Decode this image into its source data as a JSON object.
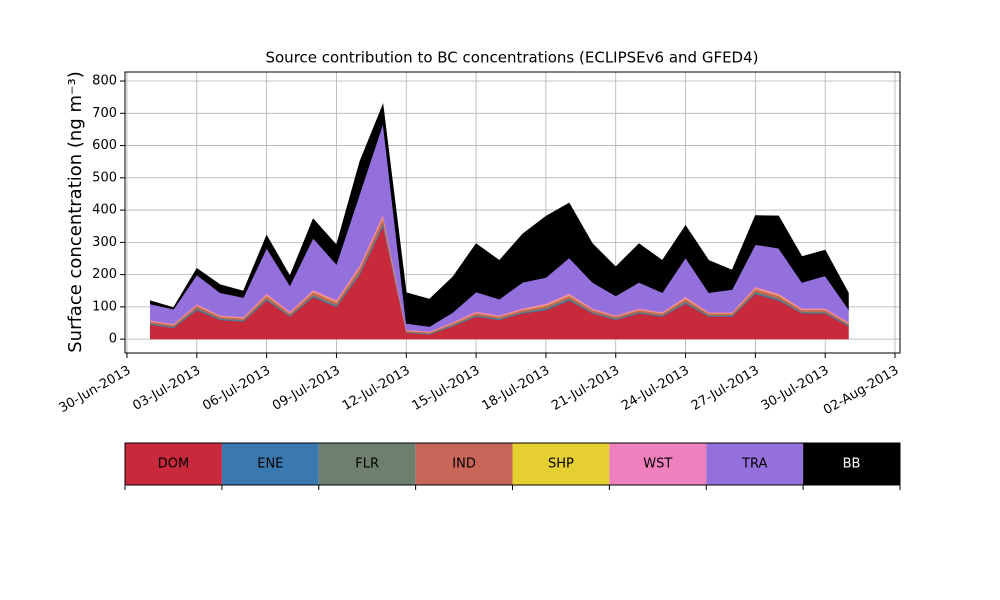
{
  "chart_data": {
    "type": "stacked_area",
    "title": "Source contribution to BC concentrations (ECLIPSEv6 and GFED4)",
    "y_label": "Surface concentration (ng m⁻³)",
    "x": [
      "2013-07-01",
      "2013-07-02",
      "2013-07-03",
      "2013-07-04",
      "2013-07-05",
      "2013-07-06",
      "2013-07-07",
      "2013-07-08",
      "2013-07-09",
      "2013-07-10",
      "2013-07-11",
      "2013-07-12",
      "2013-07-13",
      "2013-07-14",
      "2013-07-15",
      "2013-07-16",
      "2013-07-17",
      "2013-07-18",
      "2013-07-19",
      "2013-07-20",
      "2013-07-21",
      "2013-07-22",
      "2013-07-23",
      "2013-07-24",
      "2013-07-25",
      "2013-07-26",
      "2013-07-27",
      "2013-07-28",
      "2013-07-29",
      "2013-07-30",
      "2013-07-31"
    ],
    "series": [
      {
        "name": "DOM",
        "color": "#c8293b",
        "values": [
          45,
          35,
          90,
          60,
          55,
          120,
          70,
          130,
          100,
          200,
          350,
          20,
          15,
          40,
          70,
          60,
          80,
          90,
          120,
          80,
          60,
          80,
          70,
          110,
          70,
          70,
          140,
          120,
          80,
          80,
          40
        ]
      },
      {
        "name": "ENE",
        "color": "#3a78b0",
        "values": [
          2,
          2,
          3,
          2,
          2,
          3,
          2,
          3,
          3,
          4,
          5,
          1,
          1,
          2,
          2,
          2,
          2,
          3,
          3,
          2,
          2,
          2,
          2,
          3,
          2,
          2,
          3,
          3,
          2,
          2,
          2
        ]
      },
      {
        "name": "FLR",
        "color": "#6e7f6e",
        "values": [
          3,
          3,
          4,
          3,
          3,
          4,
          3,
          4,
          4,
          5,
          6,
          2,
          2,
          3,
          3,
          3,
          3,
          4,
          4,
          3,
          3,
          3,
          3,
          4,
          3,
          3,
          4,
          4,
          3,
          3,
          3
        ]
      },
      {
        "name": "IND",
        "color": "#c8665a",
        "values": [
          5,
          4,
          7,
          5,
          5,
          8,
          6,
          9,
          8,
          12,
          15,
          3,
          3,
          4,
          6,
          5,
          6,
          7,
          8,
          6,
          5,
          6,
          5,
          8,
          5,
          5,
          9,
          8,
          6,
          6,
          4
        ]
      },
      {
        "name": "SHP",
        "color": "#e6cf30",
        "values": [
          1,
          1,
          1,
          1,
          1,
          2,
          1,
          2,
          2,
          2,
          3,
          1,
          1,
          1,
          1,
          1,
          1,
          2,
          2,
          1,
          1,
          1,
          1,
          2,
          1,
          1,
          2,
          2,
          1,
          1,
          1
        ]
      },
      {
        "name": "WST",
        "color": "#f07fbe",
        "values": [
          3,
          3,
          4,
          3,
          3,
          5,
          4,
          5,
          5,
          7,
          9,
          2,
          2,
          3,
          4,
          3,
          4,
          5,
          5,
          4,
          3,
          4,
          3,
          5,
          3,
          3,
          5,
          5,
          4,
          4,
          3
        ]
      },
      {
        "name": "TRA",
        "color": "#9370db",
        "values": [
          50,
          45,
          90,
          70,
          60,
          140,
          80,
          160,
          110,
          220,
          280,
          20,
          15,
          30,
          60,
          50,
          80,
          80,
          110,
          80,
          60,
          80,
          60,
          120,
          60,
          70,
          130,
          140,
          80,
          100,
          40
        ]
      },
      {
        "name": "BB",
        "color": "#000000",
        "values": [
          10,
          5,
          20,
          25,
          20,
          40,
          30,
          60,
          60,
          100,
          60,
          95,
          85,
          110,
          150,
          120,
          150,
          190,
          170,
          120,
          90,
          120,
          100,
          100,
          100,
          60,
          90,
          100,
          80,
          80,
          50
        ]
      }
    ],
    "xlim": [
      "2013-06-30",
      "2013-08-02"
    ],
    "xticks": [
      {
        "value": "2013-06-30",
        "label": "30-Jun-2013"
      },
      {
        "value": "2013-07-03",
        "label": "03-Jul-2013"
      },
      {
        "value": "2013-07-06",
        "label": "06-Jul-2013"
      },
      {
        "value": "2013-07-09",
        "label": "09-Jul-2013"
      },
      {
        "value": "2013-07-12",
        "label": "12-Jul-2013"
      },
      {
        "value": "2013-07-15",
        "label": "15-Jul-2013"
      },
      {
        "value": "2013-07-18",
        "label": "18-Jul-2013"
      },
      {
        "value": "2013-07-21",
        "label": "21-Jul-2013"
      },
      {
        "value": "2013-07-24",
        "label": "24-Jul-2013"
      },
      {
        "value": "2013-07-27",
        "label": "27-Jul-2013"
      },
      {
        "value": "2013-07-30",
        "label": "30-Jul-2013"
      },
      {
        "value": "2013-08-02",
        "label": "02-Aug-2013"
      }
    ],
    "ylim": [
      -43,
      828
    ],
    "yticks": [
      0,
      100,
      200,
      300,
      400,
      500,
      600,
      700,
      800
    ],
    "grid": true
  }
}
